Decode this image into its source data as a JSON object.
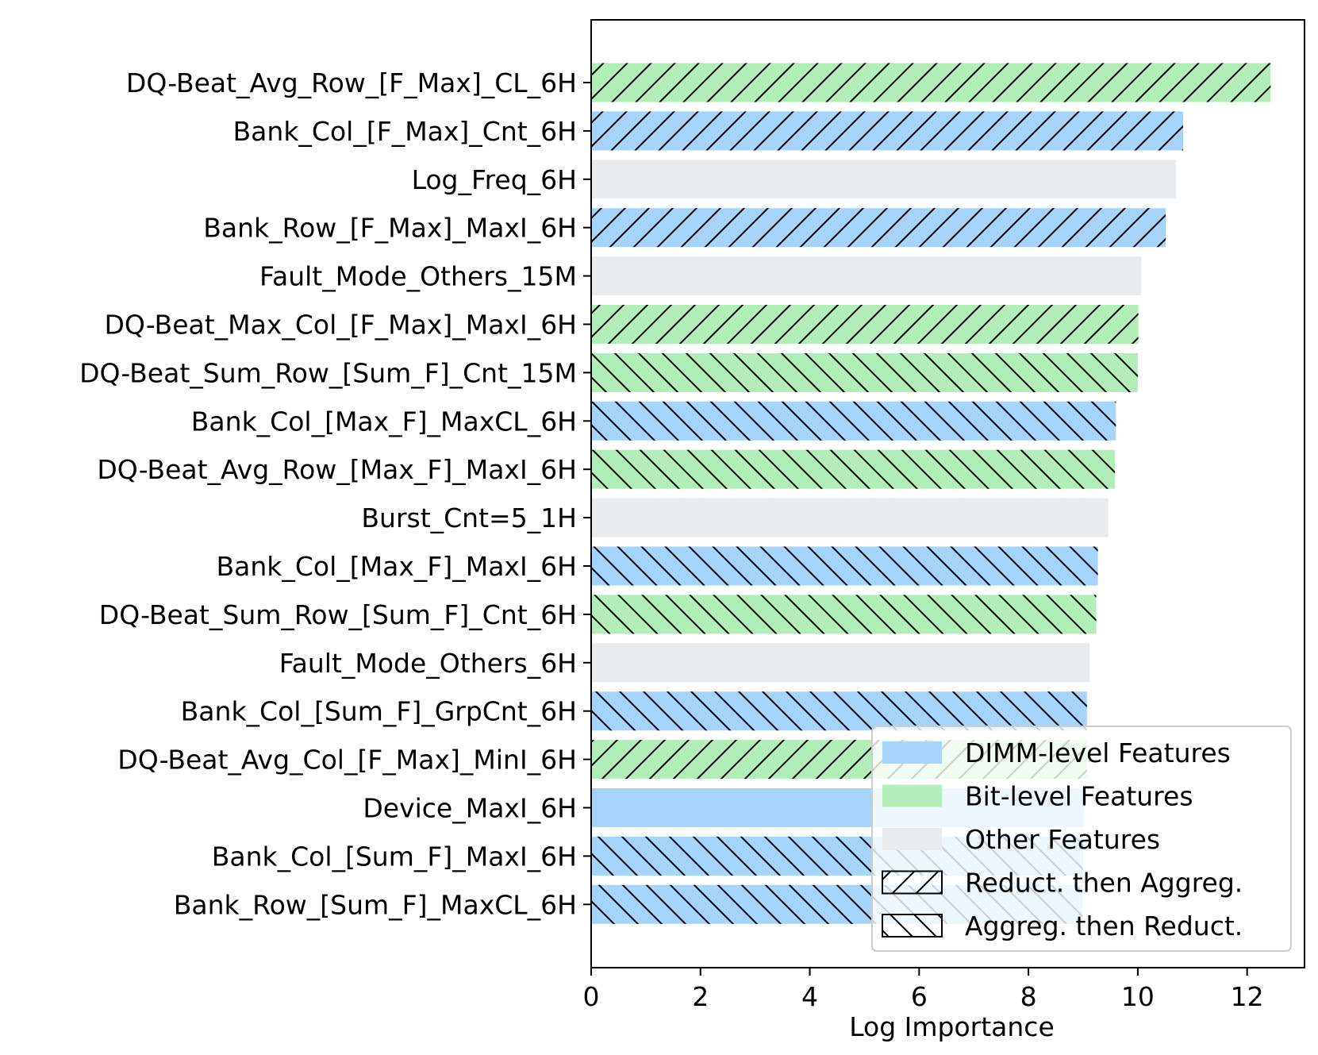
{
  "chart_data": {
    "type": "bar",
    "orientation": "horizontal",
    "title": "",
    "xlabel": "Log Importance",
    "ylabel": "",
    "xlim": [
      0,
      13.05
    ],
    "xticks": [
      0,
      2,
      4,
      6,
      8,
      10,
      12
    ],
    "grid": false,
    "legend_position": "bottom-right",
    "categories": [
      "DQ-Beat_Avg_Row_[F_Max]_CL_6H",
      "Bank_Col_[F_Max]_Cnt_6H",
      "Log_Freq_6H",
      "Bank_Row_[F_Max]_MaxI_6H",
      "Fault_Mode_Others_15M",
      "DQ-Beat_Max_Col_[F_Max]_MaxI_6H",
      "DQ-Beat_Sum_Row_[Sum_F]_Cnt_15M",
      "Bank_Col_[Max_F]_MaxCL_6H",
      "DQ-Beat_Avg_Row_[Max_F]_MaxI_6H",
      "Burst_Cnt=5_1H",
      "Bank_Col_[Max_F]_MaxI_6H",
      "DQ-Beat_Sum_Row_[Sum_F]_Cnt_6H",
      "Fault_Mode_Others_6H",
      "Bank_Col_[Sum_F]_GrpCnt_6H",
      "DQ-Beat_Avg_Col_[F_Max]_MinI_6H",
      "Device_MaxI_6H",
      "Bank_Col_[Sum_F]_MaxI_6H",
      "Bank_Row_[Sum_F]_MaxCL_6H"
    ],
    "values": [
      12.43,
      10.83,
      10.7,
      10.51,
      10.06,
      10.01,
      10.0,
      9.6,
      9.58,
      9.46,
      9.27,
      9.24,
      9.12,
      9.07,
      9.07,
      9.02,
      9.0,
      8.99
    ],
    "feature_level": [
      "bit",
      "dimm",
      "other",
      "dimm",
      "other",
      "bit",
      "bit",
      "dimm",
      "bit",
      "other",
      "dimm",
      "bit",
      "other",
      "dimm",
      "bit",
      "dimm",
      "dimm",
      "dimm"
    ],
    "hatch": [
      "forward",
      "forward",
      "none",
      "forward",
      "none",
      "forward",
      "backward",
      "backward",
      "backward",
      "none",
      "backward",
      "backward",
      "none",
      "backward",
      "forward",
      "none",
      "backward",
      "backward"
    ],
    "legend": [
      {
        "key": "dimm",
        "label": "DIMM-level Features",
        "kind": "color"
      },
      {
        "key": "bit",
        "label": "Bit-level Features",
        "kind": "color"
      },
      {
        "key": "other",
        "label": "Other Features",
        "kind": "color"
      },
      {
        "key": "forward",
        "label": "Reduct. then Aggreg.",
        "kind": "hatch"
      },
      {
        "key": "backward",
        "label": "Aggreg. then Reduct.",
        "kind": "hatch"
      }
    ],
    "colors": {
      "dimm": "#a6d4fa",
      "bit": "#b3eeba",
      "other": "#e8ecef"
    }
  }
}
